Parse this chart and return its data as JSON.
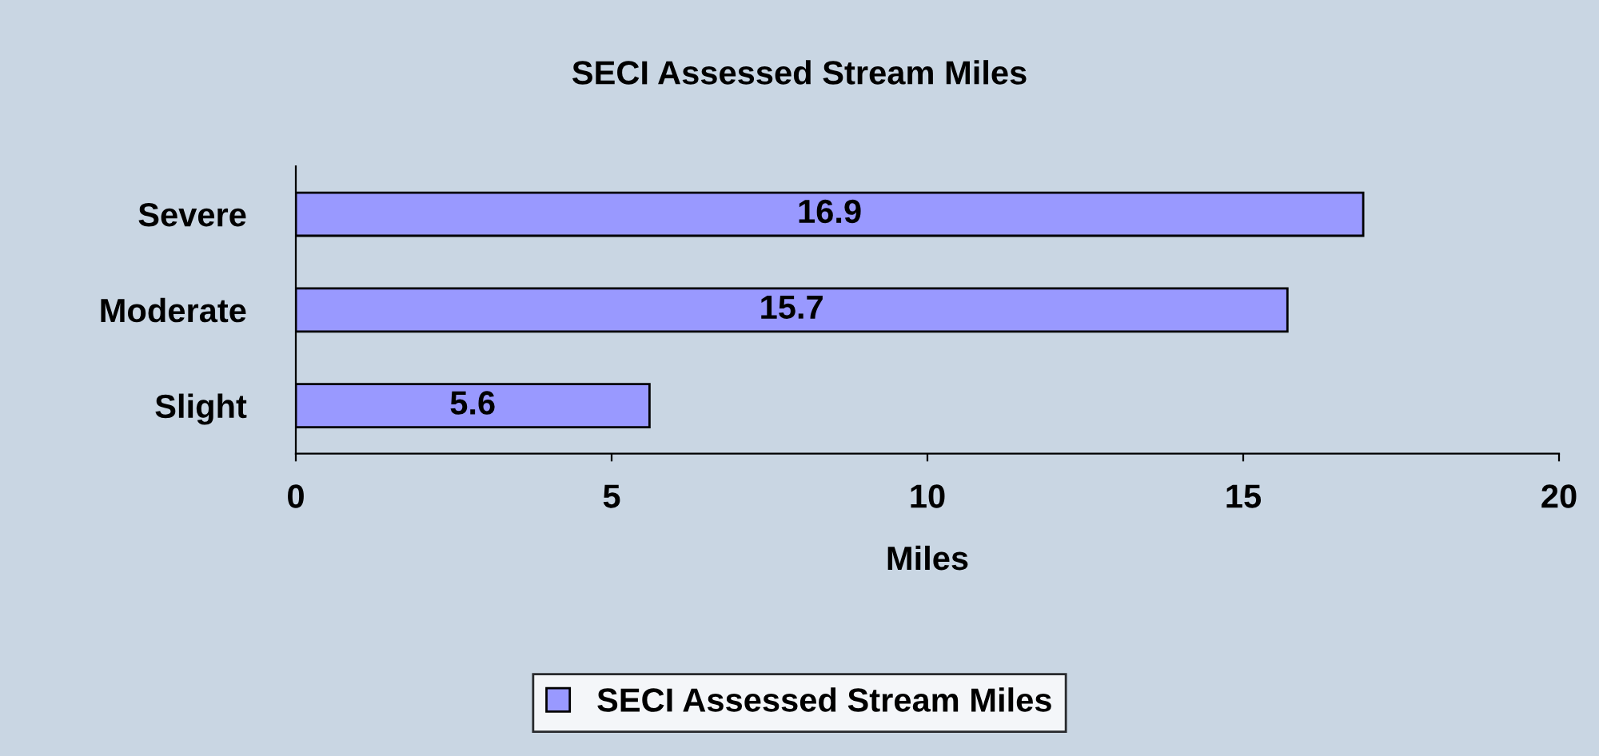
{
  "chart_data": {
    "type": "bar",
    "orientation": "horizontal",
    "title": "SECI Assessed Stream Miles",
    "xlabel": "Miles",
    "categories": [
      "Severe",
      "Moderate",
      "Slight"
    ],
    "series": [
      {
        "name": "SECI Assessed Stream Miles",
        "color": "#9999ff",
        "values": [
          16.9,
          15.7,
          5.6
        ]
      }
    ],
    "xlim": [
      0,
      20
    ],
    "xticks": [
      0,
      5,
      10,
      15,
      20
    ],
    "data_labels": true,
    "grid": false,
    "legend": "bottom"
  }
}
